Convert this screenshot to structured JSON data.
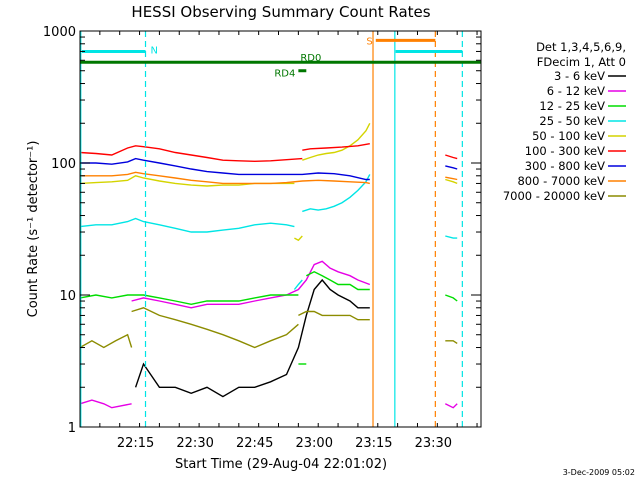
{
  "chart_data": {
    "type": "line",
    "title": "HESSI Observing Summary Count Rates",
    "xlabel": "Start Time (29-Aug-04 22:01:02)",
    "ylabel": "Count Rate (s⁻¹ detector⁻¹)",
    "x_unit": "minutes since 22:01:02 UT",
    "xlim": [
      0,
      101
    ],
    "ylim": [
      1,
      1000
    ],
    "y_scale": "log",
    "x_ticks": [
      {
        "value": 14,
        "label": "22:15"
      },
      {
        "value": 29,
        "label": "22:30"
      },
      {
        "value": 44,
        "label": "22:45"
      },
      {
        "value": 59,
        "label": "23:00"
      },
      {
        "value": 74,
        "label": "23:15"
      },
      {
        "value": 89,
        "label": "23:30"
      }
    ],
    "y_ticks": [
      {
        "value": 1,
        "label": "1"
      },
      {
        "value": 10,
        "label": "10"
      },
      {
        "value": 100,
        "label": "100"
      },
      {
        "value": 1000,
        "label": "1000"
      }
    ],
    "legend": {
      "placement": "right",
      "header": [
        "Det 1,3,4,5,6,9,",
        "FDecim 1, Att 0"
      ]
    },
    "series": [
      {
        "name": "3 - 6 keV",
        "color": "#000000",
        "segments": [
          {
            "x": [
              14,
              16,
              20,
              24,
              28,
              32,
              36,
              40,
              44,
              48,
              52,
              55,
              57,
              59,
              61,
              63,
              65,
              68,
              70,
              73
            ],
            "y": [
              2,
              3,
              2,
              2,
              1.8,
              2,
              1.7,
              2,
              2,
              2.2,
              2.5,
              4,
              7,
              11,
              13,
              11,
              10,
              9,
              8,
              8
            ]
          }
        ]
      },
      {
        "name": "6 - 12 keV",
        "color": "#e600e6",
        "segments": [
          {
            "x": [
              0,
              3,
              6,
              8,
              13
            ],
            "y": [
              1.5,
              1.6,
              1.5,
              1.4,
              1.5
            ]
          },
          {
            "x": [
              13,
              16,
              20,
              24,
              28,
              32,
              36,
              40,
              44,
              48,
              52,
              55,
              57,
              59,
              61,
              63,
              65,
              68,
              70,
              73
            ],
            "y": [
              9,
              9.5,
              9,
              8.5,
              8,
              8.5,
              8.5,
              8.5,
              9,
              9.5,
              10,
              11,
              13,
              17,
              18,
              16,
              15,
              14,
              13,
              12
            ]
          },
          {
            "x": [
              92,
              94,
              95
            ],
            "y": [
              1.5,
              1.4,
              1.5
            ]
          }
        ]
      },
      {
        "name": "12 - 25 keV",
        "color": "#00dd00",
        "segments": [
          {
            "x": [
              0,
              4,
              8,
              12,
              16,
              20,
              24,
              28,
              32,
              36,
              40,
              44,
              48,
              52,
              55
            ],
            "y": [
              9.5,
              10,
              9.5,
              10,
              10,
              9.5,
              9,
              8.5,
              9,
              9,
              9,
              9.5,
              10,
              10,
              10
            ]
          },
          {
            "x": [
              55,
              57
            ],
            "y": [
              3,
              3
            ]
          },
          {
            "x": [
              57,
              59,
              61,
              63,
              65,
              68,
              70,
              73
            ],
            "y": [
              14,
              15,
              14,
              13,
              12,
              12,
              11,
              11
            ]
          },
          {
            "x": [
              92,
              94,
              95
            ],
            "y": [
              10,
              9.5,
              9
            ]
          }
        ]
      },
      {
        "name": "25 - 50 keV",
        "color": "#00e5e5",
        "segments": [
          {
            "x": [
              0,
              4,
              8,
              12,
              14,
              16,
              20,
              24,
              28,
              32,
              36,
              40,
              44,
              48,
              52,
              54
            ],
            "y": [
              33,
              34,
              34,
              36,
              38,
              36,
              34,
              32,
              30,
              30,
              31,
              32,
              34,
              35,
              34,
              33
            ]
          },
          {
            "x": [
              54,
              55,
              56
            ],
            "y": [
              11,
              12,
              13
            ]
          },
          {
            "x": [
              56,
              58,
              60,
              62,
              64,
              66,
              68,
              70,
              72,
              73
            ],
            "y": [
              43,
              45,
              44,
              45,
              47,
              50,
              55,
              62,
              72,
              82
            ]
          },
          {
            "x": [
              92,
              94,
              95
            ],
            "y": [
              28,
              27,
              27
            ]
          }
        ]
      },
      {
        "name": "50 - 100 keV",
        "color": "#d4d400",
        "segments": [
          {
            "x": [
              0,
              4,
              8,
              12,
              14,
              16,
              20,
              24,
              28,
              32,
              36,
              40,
              44,
              48,
              52,
              54
            ],
            "y": [
              70,
              71,
              72,
              74,
              80,
              77,
              73,
              70,
              68,
              67,
              68,
              68,
              70,
              70,
              70,
              70
            ]
          },
          {
            "x": [
              54,
              55,
              56
            ],
            "y": [
              27,
              26,
              28
            ]
          },
          {
            "x": [
              56,
              58,
              60,
              62,
              64,
              66,
              68,
              70,
              72,
              73
            ],
            "y": [
              105,
              110,
              115,
              118,
              120,
              125,
              135,
              150,
              175,
              200
            ]
          },
          {
            "x": [
              92,
              94,
              95
            ],
            "y": [
              75,
              72,
              70
            ]
          }
        ]
      },
      {
        "name": "100 - 300 keV",
        "color": "#ff0000",
        "segments": [
          {
            "x": [
              0,
              4,
              8,
              12,
              14,
              16,
              20,
              24,
              28,
              32,
              36,
              40,
              44,
              48,
              52,
              56
            ],
            "y": [
              120,
              118,
              115,
              130,
              135,
              133,
              128,
              120,
              115,
              110,
              105,
              104,
              103,
              104,
              106,
              108
            ]
          },
          {
            "x": [
              56,
              58,
              62,
              66,
              70,
              73
            ],
            "y": [
              125,
              128,
              130,
              132,
              135,
              140
            ]
          },
          {
            "x": [
              92,
              94,
              95
            ],
            "y": [
              115,
              110,
              108
            ]
          }
        ]
      },
      {
        "name": "300 - 800 keV",
        "color": "#0000dd",
        "segments": [
          {
            "x": [
              0,
              4,
              8,
              12,
              14,
              16,
              20,
              24,
              28,
              32,
              36,
              40,
              44,
              48,
              52,
              56,
              60,
              64,
              68,
              72,
              73
            ],
            "y": [
              100,
              100,
              98,
              102,
              108,
              105,
              100,
              95,
              90,
              86,
              84,
              82,
              82,
              82,
              82,
              82,
              84,
              83,
              80,
              75,
              75
            ]
          },
          {
            "x": [
              92,
              94,
              95
            ],
            "y": [
              95,
              92,
              90
            ]
          }
        ]
      },
      {
        "name": "800 - 7000 keV",
        "color": "#ff8000",
        "segments": [
          {
            "x": [
              0,
              4,
              8,
              12,
              14,
              16,
              20,
              24,
              28,
              32,
              36,
              40,
              44,
              48,
              52,
              56,
              60,
              64,
              68,
              72,
              73
            ],
            "y": [
              80,
              80,
              80,
              82,
              85,
              83,
              80,
              77,
              74,
              72,
              70,
              70,
              70,
              70,
              71,
              73,
              74,
              73,
              72,
              71,
              70
            ]
          },
          {
            "x": [
              92,
              94,
              95
            ],
            "y": [
              78,
              76,
              75
            ]
          }
        ]
      },
      {
        "name": "7000 - 20000 keV",
        "color": "#8c8c00",
        "segments": [
          {
            "x": [
              0,
              3,
              6,
              9,
              12,
              13
            ],
            "y": [
              4,
              4.5,
              4,
              4.5,
              5,
              4
            ]
          },
          {
            "x": [
              13,
              16,
              20,
              24,
              28,
              32,
              36,
              40,
              44,
              48,
              52,
              55
            ],
            "y": [
              7.5,
              8,
              7,
              6.5,
              6,
              5.5,
              5,
              4.5,
              4,
              4.5,
              5,
              6
            ]
          },
          {
            "x": [
              55,
              57,
              59,
              61,
              63,
              65,
              68,
              70,
              73
            ],
            "y": [
              7,
              7.5,
              7.5,
              7,
              7,
              7,
              7,
              6.5,
              6.5
            ]
          },
          {
            "x": [
              92,
              94,
              95
            ],
            "y": [
              4.5,
              4.5,
              4.3
            ]
          }
        ]
      }
    ],
    "annotations": {
      "vertical_lines": [
        {
          "x": 0.2,
          "color": "#00e5e5",
          "style": "solid"
        },
        {
          "x": 16.5,
          "color": "#00e5e5",
          "style": "dashed"
        },
        {
          "x": 73.8,
          "color": "#ff8000",
          "style": "solid"
        },
        {
          "x": 79.3,
          "color": "#00e5e5",
          "style": "solid"
        },
        {
          "x": 89.5,
          "color": "#ff8000",
          "style": "dashed"
        },
        {
          "x": 96.3,
          "color": "#00e5e5",
          "style": "dashed"
        }
      ],
      "bars": [
        {
          "label": "N",
          "x0": 0.5,
          "x1": 16.5,
          "level": 700,
          "color": "#00e5e5"
        },
        {
          "label": "",
          "x0": 79.5,
          "x1": 96.3,
          "level": 700,
          "color": "#00e5e5"
        },
        {
          "label": "S",
          "x0": 74.5,
          "x1": 89.5,
          "level": 850,
          "color": "#ff8000"
        },
        {
          "label": "RD0",
          "x0": 0,
          "x1": 101,
          "level": 580,
          "color": "#007700"
        },
        {
          "label": "RD4",
          "x0": 55,
          "x1": 57,
          "level": 500,
          "color": "#007700"
        }
      ]
    }
  },
  "footer_timestamp": "3-Dec-2009 05:02"
}
